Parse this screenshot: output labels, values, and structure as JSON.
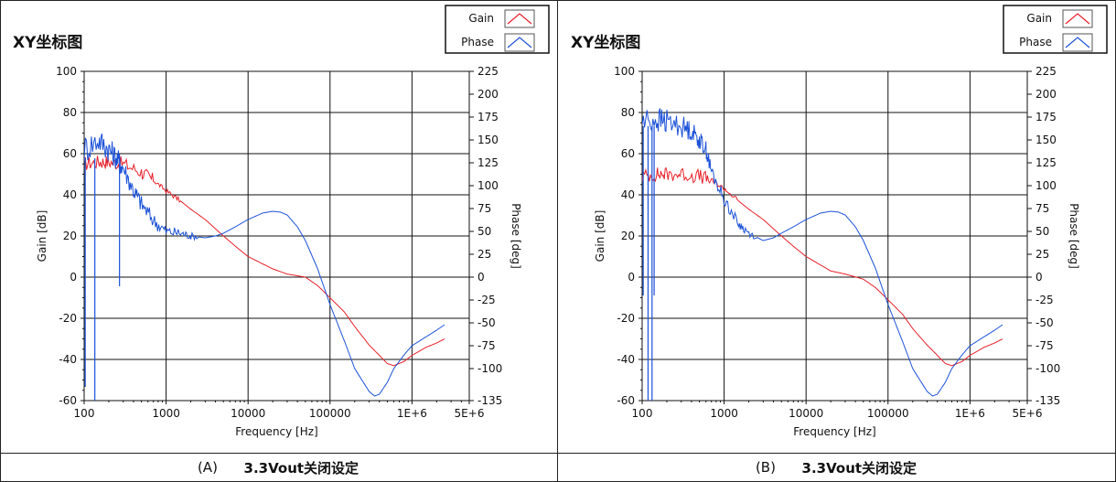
{
  "panels": [
    {
      "caption_letter": "(A)",
      "caption_text": "3.3Vout关闭设定",
      "chart_data": {
        "type": "line",
        "title": "XY坐标图",
        "xlabel": "Frequency [Hz]",
        "ylabel": "Gain [dB]",
        "y2label": "Phase [deg]",
        "xscale": "log",
        "xlim": [
          100,
          5000000
        ],
        "ylim": [
          -60,
          100
        ],
        "y2lim": [
          -135,
          225
        ],
        "x_ticks": [
          "100",
          "1000",
          "10000",
          "100000",
          "1E+6",
          "5E+6"
        ],
        "y_ticks": [
          "100",
          "80",
          "60",
          "40",
          "20",
          "0",
          "-20",
          "-40",
          "-60"
        ],
        "y2_ticks": [
          "225",
          "200",
          "175",
          "150",
          "125",
          "100",
          "75",
          "50",
          "25",
          "0",
          "-25",
          "-50",
          "-75",
          "-100",
          "-135"
        ],
        "grid": true,
        "legend_position": "top-right",
        "series": [
          {
            "name": "Gain",
            "axis": "left",
            "color": "#e8202a",
            "x": [
              100,
              150,
              200,
              300,
              500,
              700,
              1000,
              1500,
              2000,
              3000,
              5000,
              7000,
              10000,
              20000,
              30000,
              50000,
              70000,
              100000,
              150000,
              200000,
              300000,
              400000,
              500000,
              600000,
              800000,
              1000000,
              1500000,
              2000000,
              2500000
            ],
            "y": [
              55,
              56,
              56,
              55,
              51,
              47,
              42,
              37,
              33,
              28,
              20,
              15,
              10,
              4,
              1.5,
              0,
              -4,
              -10,
              -17,
              -24,
              -33,
              -38,
              -42,
              -43,
              -41,
              -38,
              -34,
              -32,
              -30
            ]
          },
          {
            "name": "Phase",
            "axis": "right",
            "color": "#1c52d8",
            "x": [
              100,
              150,
              200,
              250,
              300,
              400,
              500,
              700,
              1000,
              1500,
              2000,
              3000,
              4000,
              5000,
              7000,
              10000,
              15000,
              20000,
              25000,
              30000,
              40000,
              50000,
              70000,
              100000,
              150000,
              200000,
              300000,
              350000,
              400000,
              500000,
              600000,
              800000,
              1000000,
              1500000,
              2000000,
              2500000
            ],
            "y": [
              140,
              150,
              140,
              130,
              120,
              95,
              80,
              62,
              50,
              48,
              45,
              43,
              45,
              48,
              55,
              63,
              70,
              72,
              71,
              68,
              55,
              40,
              10,
              -30,
              -70,
              -100,
              -125,
              -130,
              -128,
              -115,
              -100,
              -85,
              -75,
              -65,
              -58,
              -52
            ]
          }
        ]
      }
    },
    {
      "caption_letter": "(B)",
      "caption_text": "3.3Vout关闭设定",
      "chart_data": {
        "type": "line",
        "title": "XY坐标图",
        "xlabel": "Frequency [Hz]",
        "ylabel": "Gain [dB]",
        "y2label": "Phase [deg]",
        "xscale": "log",
        "xlim": [
          100,
          5000000
        ],
        "ylim": [
          -60,
          100
        ],
        "y2lim": [
          -135,
          225
        ],
        "x_ticks": [
          "100",
          "1000",
          "10000",
          "100000",
          "1E+6",
          "5E+6"
        ],
        "y_ticks": [
          "100",
          "80",
          "60",
          "40",
          "20",
          "0",
          "-20",
          "-40",
          "-60"
        ],
        "y2_ticks": [
          "225",
          "200",
          "175",
          "150",
          "125",
          "100",
          "75",
          "50",
          "25",
          "0",
          "-25",
          "-50",
          "-75",
          "-100",
          "-135"
        ],
        "grid": true,
        "legend_position": "top-right",
        "series": [
          {
            "name": "Gain",
            "axis": "left",
            "color": "#e8202a",
            "x": [
              100,
              150,
              200,
              300,
              500,
              700,
              1000,
              1500,
              2000,
              3000,
              5000,
              7000,
              10000,
              20000,
              30000,
              50000,
              70000,
              100000,
              150000,
              200000,
              300000,
              400000,
              500000,
              600000,
              800000,
              1000000,
              1500000,
              2000000,
              2500000
            ],
            "y": [
              49,
              50,
              50,
              50,
              49,
              47,
              43,
              37,
              33,
              28,
              20,
              15,
              10,
              3,
              1.5,
              -1,
              -5,
              -11,
              -18,
              -25,
              -33,
              -38,
              -42,
              -43,
              -41,
              -38,
              -34,
              -32,
              -30
            ]
          },
          {
            "name": "Phase",
            "axis": "right",
            "color": "#1c52d8",
            "x": [
              100,
              150,
              200,
              300,
              400,
              500,
              600,
              700,
              1000,
              1500,
              2000,
              3000,
              4000,
              5000,
              7000,
              10000,
              15000,
              20000,
              25000,
              30000,
              40000,
              50000,
              70000,
              100000,
              150000,
              200000,
              300000,
              350000,
              400000,
              500000,
              600000,
              800000,
              1000000,
              1500000,
              2000000,
              2500000
            ],
            "y": [
              170,
              172,
              170,
              165,
              160,
              150,
              140,
              115,
              85,
              58,
              48,
              40,
              43,
              48,
              55,
              63,
              70,
              72,
              71,
              68,
              55,
              40,
              10,
              -30,
              -70,
              -100,
              -125,
              -130,
              -128,
              -115,
              -100,
              -85,
              -75,
              -65,
              -58,
              -52
            ]
          }
        ]
      }
    }
  ]
}
